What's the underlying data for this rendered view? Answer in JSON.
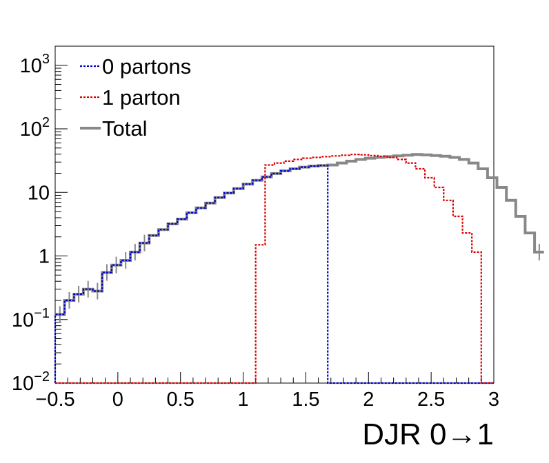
{
  "chart_data": {
    "type": "line",
    "xlabel": "DJR 0→1",
    "ylabel": "",
    "xlim": [
      -0.5,
      3.0
    ],
    "ylim": [
      0.01,
      2000
    ],
    "y_scale": "log",
    "bin_width": 0.075,
    "grid": false,
    "legend_position": "top-left",
    "x_ticks": [
      "−0.5",
      "0",
      "0.5",
      "1",
      "1.5",
      "2",
      "2.5",
      "3"
    ],
    "x_tick_values": [
      -0.5,
      0,
      0.5,
      1,
      1.5,
      2,
      2.5,
      3
    ],
    "y_ticks": [
      {
        "value": 1000,
        "base": "10",
        "exp": "3"
      },
      {
        "value": 100,
        "base": "10",
        "exp": "2"
      },
      {
        "value": 10,
        "base": "10",
        "exp": ""
      },
      {
        "value": 1,
        "base": "1",
        "exp": ""
      },
      {
        "value": 0.1,
        "base": "10",
        "exp": "−1"
      },
      {
        "value": 0.01,
        "base": "10",
        "exp": "−2"
      }
    ],
    "series": [
      {
        "name": "0 partons",
        "color": "#0000cc",
        "style": "dotted",
        "x_start": -0.5,
        "values": [
          0.12,
          0.2,
          0.25,
          0.3,
          0.28,
          0.55,
          0.72,
          0.85,
          1.15,
          1.6,
          2.1,
          2.6,
          3.2,
          3.8,
          4.8,
          5.7,
          6.8,
          8.3,
          9.8,
          11.5,
          13.5,
          15.5,
          17.5,
          19.8,
          21.8,
          23.5,
          25.0,
          26.0,
          26.5
        ]
      },
      {
        "name": "1 parton",
        "color": "#dd0000",
        "style": "dotted",
        "x_start": 1.1,
        "values": [
          1.5,
          27.0,
          29.0,
          31.0,
          33.0,
          34.5,
          35.5,
          36.5,
          37.5,
          38.5,
          39.5,
          39.0,
          38.0,
          37.0,
          35.5,
          33.0,
          29.0,
          23.5,
          17.0,
          12.0,
          7.5,
          4.2,
          2.3,
          1.15
        ]
      },
      {
        "name": "Total",
        "color": "#888888",
        "style": "solid",
        "x_start": -0.5,
        "values": [
          0.12,
          0.2,
          0.25,
          0.3,
          0.28,
          0.55,
          0.72,
          0.85,
          1.15,
          1.6,
          2.1,
          2.6,
          3.2,
          3.8,
          4.8,
          5.7,
          6.8,
          8.3,
          9.8,
          11.5,
          13.5,
          15.5,
          17.5,
          19.8,
          21.8,
          23.5,
          25.0,
          26.0,
          26.5,
          27.0,
          29.0,
          31.0,
          33.0,
          34.5,
          35.5,
          36.5,
          37.5,
          38.5,
          39.5,
          39.0,
          38.0,
          37.0,
          35.5,
          33.0,
          29.0,
          23.5,
          17.0,
          12.0,
          7.5,
          4.2,
          2.3,
          1.15
        ]
      }
    ],
    "legend": [
      {
        "label": "0 partons"
      },
      {
        "label": "1 parton"
      },
      {
        "label": "Total"
      }
    ]
  }
}
